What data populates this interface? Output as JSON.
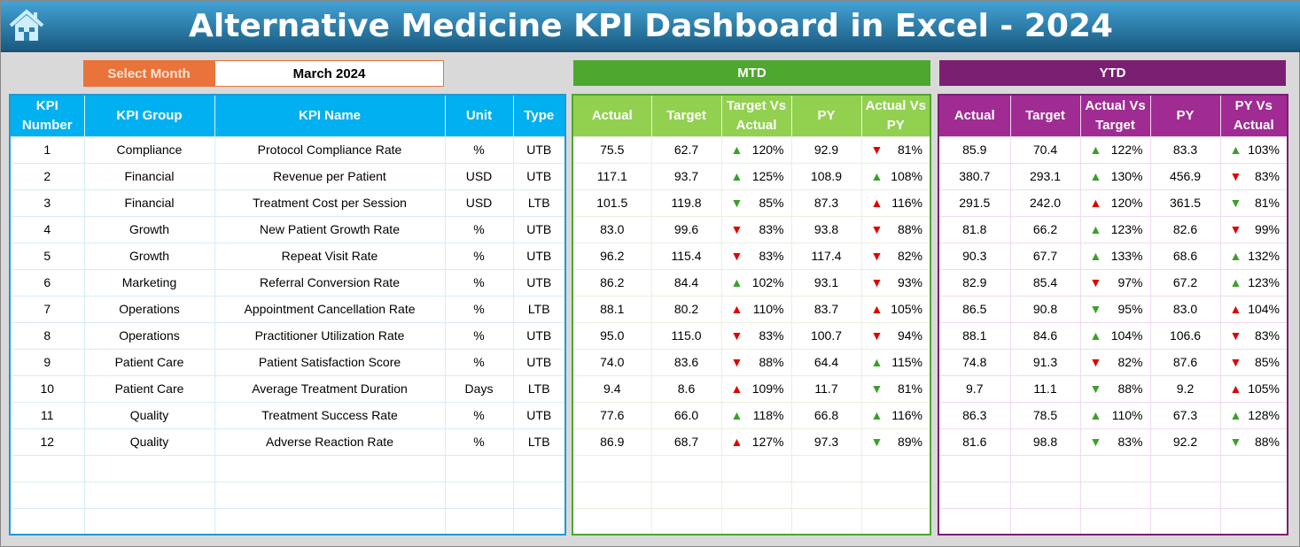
{
  "header": {
    "title": "Alternative Medicine KPI Dashboard in Excel - 2024",
    "home_icon": "home-icon"
  },
  "selector": {
    "label": "Select Month",
    "value": "March 2024"
  },
  "sections": {
    "mtd": "MTD",
    "ytd": "YTD"
  },
  "colors": {
    "title": "#1f6f9c",
    "select": "#e9733a",
    "kpi_header": "#00b0f0",
    "mtd": "#4ea72e",
    "mtd_header": "#92d050",
    "ytd": "#7b1f72",
    "ytd_header": "#a02b93",
    "good": "#3aa02a",
    "bad": "#e00000"
  },
  "left_headers": [
    "KPI Number",
    "KPI Group",
    "KPI Name",
    "Unit",
    "Type"
  ],
  "mtd_headers": [
    "Actual",
    "Target",
    "Target Vs Actual",
    "PY",
    "Actual Vs PY"
  ],
  "ytd_headers": [
    "Actual",
    "Target",
    "Actual Vs Target",
    "PY",
    "PY Vs Actual"
  ],
  "rows": [
    {
      "num": "1",
      "group": "Compliance",
      "name": "Protocol Compliance Rate",
      "unit": "%",
      "type": "UTB",
      "mtd": [
        "75.5",
        "62.7",
        [
          "up",
          "green",
          "120%"
        ],
        "92.9",
        [
          "down",
          "red",
          "81%"
        ]
      ],
      "ytd": [
        "85.9",
        "70.4",
        [
          "up",
          "green",
          "122%"
        ],
        "83.3",
        [
          "up",
          "green",
          "103%"
        ]
      ]
    },
    {
      "num": "2",
      "group": "Financial",
      "name": "Revenue per Patient",
      "unit": "USD",
      "type": "UTB",
      "mtd": [
        "117.1",
        "93.7",
        [
          "up",
          "green",
          "125%"
        ],
        "108.9",
        [
          "up",
          "green",
          "108%"
        ]
      ],
      "ytd": [
        "380.7",
        "293.1",
        [
          "up",
          "green",
          "130%"
        ],
        "456.9",
        [
          "down",
          "red",
          "83%"
        ]
      ]
    },
    {
      "num": "3",
      "group": "Financial",
      "name": "Treatment Cost per Session",
      "unit": "USD",
      "type": "LTB",
      "mtd": [
        "101.5",
        "119.8",
        [
          "down",
          "green",
          "85%"
        ],
        "87.3",
        [
          "up",
          "red",
          "116%"
        ]
      ],
      "ytd": [
        "291.5",
        "242.0",
        [
          "up",
          "red",
          "120%"
        ],
        "361.5",
        [
          "down",
          "green",
          "81%"
        ]
      ]
    },
    {
      "num": "4",
      "group": "Growth",
      "name": "New Patient Growth Rate",
      "unit": "%",
      "type": "UTB",
      "mtd": [
        "83.0",
        "99.6",
        [
          "down",
          "red",
          "83%"
        ],
        "93.8",
        [
          "down",
          "red",
          "88%"
        ]
      ],
      "ytd": [
        "81.8",
        "66.2",
        [
          "up",
          "green",
          "123%"
        ],
        "82.6",
        [
          "down",
          "red",
          "99%"
        ]
      ]
    },
    {
      "num": "5",
      "group": "Growth",
      "name": "Repeat Visit Rate",
      "unit": "%",
      "type": "UTB",
      "mtd": [
        "96.2",
        "115.4",
        [
          "down",
          "red",
          "83%"
        ],
        "117.4",
        [
          "down",
          "red",
          "82%"
        ]
      ],
      "ytd": [
        "90.3",
        "67.7",
        [
          "up",
          "green",
          "133%"
        ],
        "68.6",
        [
          "up",
          "green",
          "132%"
        ]
      ]
    },
    {
      "num": "6",
      "group": "Marketing",
      "name": "Referral Conversion Rate",
      "unit": "%",
      "type": "UTB",
      "mtd": [
        "86.2",
        "84.4",
        [
          "up",
          "green",
          "102%"
        ],
        "93.1",
        [
          "down",
          "red",
          "93%"
        ]
      ],
      "ytd": [
        "82.9",
        "85.4",
        [
          "down",
          "red",
          "97%"
        ],
        "67.2",
        [
          "up",
          "green",
          "123%"
        ]
      ]
    },
    {
      "num": "7",
      "group": "Operations",
      "name": "Appointment Cancellation Rate",
      "unit": "%",
      "type": "LTB",
      "mtd": [
        "88.1",
        "80.2",
        [
          "up",
          "red",
          "110%"
        ],
        "83.7",
        [
          "up",
          "red",
          "105%"
        ]
      ],
      "ytd": [
        "86.5",
        "90.8",
        [
          "down",
          "green",
          "95%"
        ],
        "83.0",
        [
          "up",
          "red",
          "104%"
        ]
      ]
    },
    {
      "num": "8",
      "group": "Operations",
      "name": "Practitioner Utilization Rate",
      "unit": "%",
      "type": "UTB",
      "mtd": [
        "95.0",
        "115.0",
        [
          "down",
          "red",
          "83%"
        ],
        "100.7",
        [
          "down",
          "red",
          "94%"
        ]
      ],
      "ytd": [
        "88.1",
        "84.6",
        [
          "up",
          "green",
          "104%"
        ],
        "106.6",
        [
          "down",
          "red",
          "83%"
        ]
      ]
    },
    {
      "num": "9",
      "group": "Patient Care",
      "name": "Patient Satisfaction Score",
      "unit": "%",
      "type": "UTB",
      "mtd": [
        "74.0",
        "83.6",
        [
          "down",
          "red",
          "88%"
        ],
        "64.4",
        [
          "up",
          "green",
          "115%"
        ]
      ],
      "ytd": [
        "74.8",
        "91.3",
        [
          "down",
          "red",
          "82%"
        ],
        "87.6",
        [
          "down",
          "red",
          "85%"
        ]
      ]
    },
    {
      "num": "10",
      "group": "Patient Care",
      "name": "Average Treatment Duration",
      "unit": "Days",
      "type": "LTB",
      "mtd": [
        "9.4",
        "8.6",
        [
          "up",
          "red",
          "109%"
        ],
        "11.7",
        [
          "down",
          "green",
          "81%"
        ]
      ],
      "ytd": [
        "9.7",
        "11.1",
        [
          "down",
          "green",
          "88%"
        ],
        "9.2",
        [
          "up",
          "red",
          "105%"
        ]
      ]
    },
    {
      "num": "11",
      "group": "Quality",
      "name": "Treatment Success Rate",
      "unit": "%",
      "type": "UTB",
      "mtd": [
        "77.6",
        "66.0",
        [
          "up",
          "green",
          "118%"
        ],
        "66.8",
        [
          "up",
          "green",
          "116%"
        ]
      ],
      "ytd": [
        "86.3",
        "78.5",
        [
          "up",
          "green",
          "110%"
        ],
        "67.3",
        [
          "up",
          "green",
          "128%"
        ]
      ]
    },
    {
      "num": "12",
      "group": "Quality",
      "name": "Adverse Reaction Rate",
      "unit": "%",
      "type": "LTB",
      "mtd": [
        "86.9",
        "68.7",
        [
          "up",
          "red",
          "127%"
        ],
        "97.3",
        [
          "down",
          "green",
          "89%"
        ]
      ],
      "ytd": [
        "81.6",
        "98.8",
        [
          "down",
          "green",
          "83%"
        ],
        "92.2",
        [
          "down",
          "green",
          "88%"
        ]
      ]
    }
  ]
}
